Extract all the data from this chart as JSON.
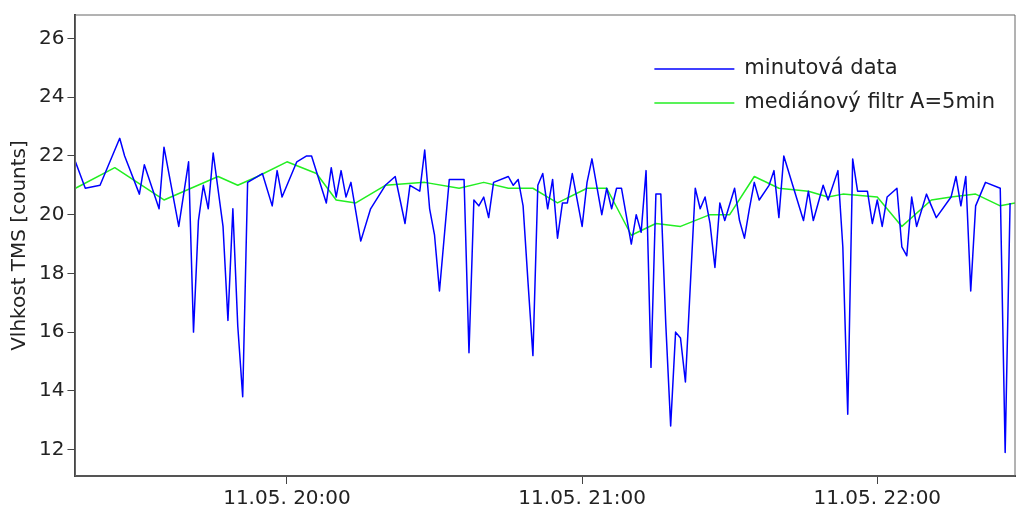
{
  "chart_data": {
    "type": "line",
    "ylabel": "Vlhkost TMS [counts]",
    "xlim": [
      "--05-11T19:17",
      "--05-11T22:28"
    ],
    "ylim": [
      11.1,
      26.8
    ],
    "xticks": [
      {
        "value": "--05-11T20:00",
        "label": "11.05. 20:00"
      },
      {
        "value": "--05-11T21:00",
        "label": "11.05. 21:00"
      },
      {
        "value": "--05-11T22:00",
        "label": "11.05. 22:00"
      }
    ],
    "yticks": [
      12,
      14,
      16,
      18,
      20,
      22,
      24,
      26
    ],
    "grid": false,
    "legend": "top right",
    "marker": "none",
    "line_style": "solid",
    "series": [
      {
        "name": "minutová data",
        "color": "#0000ff",
        "x": [
          "--05-11T19:17",
          "--05-11T19:19",
          "--05-11T19:22",
          "--05-11T19:26",
          "--05-11T19:27",
          "--05-11T19:30",
          "--05-11T19:31",
          "--05-11T19:34",
          "--05-11T19:35",
          "--05-11T19:38",
          "--05-11T19:40",
          "--05-11T19:41",
          "--05-11T19:42",
          "--05-11T19:43",
          "--05-11T19:44",
          "--05-11T19:45",
          "--05-11T19:47",
          "--05-11T19:48",
          "--05-11T19:49",
          "--05-11T19:50",
          "--05-11T19:51",
          "--05-11T19:52",
          "--05-11T19:55",
          "--05-11T19:57",
          "--05-11T19:58",
          "--05-11T19:59",
          "--05-11T20:02",
          "--05-11T20:04",
          "--05-11T20:05",
          "--05-11T20:08",
          "--05-11T20:09",
          "--05-11T20:10",
          "--05-11T20:11",
          "--05-11T20:12",
          "--05-11T20:13",
          "--05-11T20:15",
          "--05-11T20:17",
          "--05-11T20:20",
          "--05-11T20:22",
          "--05-11T20:23",
          "--05-11T20:24",
          "--05-11T20:25",
          "--05-11T20:27",
          "--05-11T20:28",
          "--05-11T20:29",
          "--05-11T20:30",
          "--05-11T20:31",
          "--05-11T20:33",
          "--05-11T20:36",
          "--05-11T20:37",
          "--05-11T20:38",
          "--05-11T20:39",
          "--05-11T20:40",
          "--05-11T20:41",
          "--05-11T20:42",
          "--05-11T20:45",
          "--05-11T20:46",
          "--05-11T20:47",
          "--05-11T20:48",
          "--05-11T20:49",
          "--05-11T20:50",
          "--05-11T20:51",
          "--05-11T20:52",
          "--05-11T20:53",
          "--05-11T20:54",
          "--05-11T20:55",
          "--05-11T20:56",
          "--05-11T20:57",
          "--05-11T20:58",
          "--05-11T21:00",
          "--05-11T21:01",
          "--05-11T21:02",
          "--05-11T21:04",
          "--05-11T21:05",
          "--05-11T21:06",
          "--05-11T21:07",
          "--05-11T21:08",
          "--05-11T21:10",
          "--05-11T21:11",
          "--05-11T21:12",
          "--05-11T21:13",
          "--05-11T21:14",
          "--05-11T21:15",
          "--05-11T21:16",
          "--05-11T21:17",
          "--05-11T21:18",
          "--05-11T21:19",
          "--05-11T21:20",
          "--05-11T21:21",
          "--05-11T21:23",
          "--05-11T21:24",
          "--05-11T21:25",
          "--05-11T21:26",
          "--05-11T21:27",
          "--05-11T21:28",
          "--05-11T21:29",
          "--05-11T21:31",
          "--05-11T21:32",
          "--05-11T21:33",
          "--05-11T21:34",
          "--05-11T21:35",
          "--05-11T21:36",
          "--05-11T21:38",
          "--05-11T21:39",
          "--05-11T21:40",
          "--05-11T21:41",
          "--05-11T21:43",
          "--05-11T21:45",
          "--05-11T21:46",
          "--05-11T21:47",
          "--05-11T21:49",
          "--05-11T21:50",
          "--05-11T21:52",
          "--05-11T21:53",
          "--05-11T21:54",
          "--05-11T21:55",
          "--05-11T21:56",
          "--05-11T21:58",
          "--05-11T21:59",
          "--05-11T22:00",
          "--05-11T22:01",
          "--05-11T22:02",
          "--05-11T22:04",
          "--05-11T22:05",
          "--05-11T22:06",
          "--05-11T22:07",
          "--05-11T22:08",
          "--05-11T22:10",
          "--05-11T22:12",
          "--05-11T22:15",
          "--05-11T22:16",
          "--05-11T22:17",
          "--05-11T22:18",
          "--05-11T22:19",
          "--05-11T22:20",
          "--05-11T22:22",
          "--05-11T22:25",
          "--05-11T22:26",
          "--05-11T22:27"
        ],
        "values": [
          21.8,
          20.9,
          21.0,
          22.6,
          22.0,
          20.7,
          21.7,
          20.2,
          22.3,
          19.6,
          21.8,
          16.0,
          19.8,
          21.0,
          20.2,
          22.1,
          19.6,
          16.4,
          20.2,
          16.2,
          13.8,
          21.1,
          21.4,
          20.3,
          21.5,
          20.6,
          21.8,
          22.0,
          22.0,
          20.4,
          21.6,
          20.6,
          21.5,
          20.6,
          21.1,
          19.1,
          20.2,
          21.0,
          21.3,
          20.5,
          19.7,
          21.0,
          20.8,
          22.2,
          20.2,
          19.3,
          17.4,
          21.2,
          21.2,
          15.3,
          20.5,
          20.3,
          20.6,
          19.9,
          21.1,
          21.3,
          21.0,
          21.2,
          20.3,
          17.7,
          15.2,
          21.0,
          21.4,
          20.2,
          21.2,
          19.2,
          20.4,
          20.4,
          21.4,
          19.6,
          21.1,
          21.9,
          20.0,
          20.9,
          20.2,
          20.9,
          20.9,
          19.0,
          20.0,
          19.4,
          21.5,
          14.8,
          20.7,
          20.7,
          16.3,
          12.8,
          16.0,
          15.8,
          14.3,
          20.9,
          20.2,
          20.6,
          19.7,
          18.2,
          20.4,
          19.8,
          20.9,
          19.8,
          19.2,
          20.2,
          21.1,
          20.5,
          21.0,
          21.5,
          19.9,
          22.0,
          20.9,
          19.8,
          20.8,
          19.8,
          21.0,
          20.5,
          21.5,
          18.9,
          13.2,
          21.9,
          20.8,
          20.8,
          19.7,
          20.5,
          19.6,
          20.6,
          20.9,
          18.9,
          18.6,
          20.6,
          19.6,
          20.7,
          19.9,
          20.6,
          21.3,
          20.3,
          21.3,
          17.4,
          20.3,
          21.1,
          20.9,
          11.9,
          20.4
        ]
      },
      {
        "name": "mediánový filtr A=5min",
        "color": "#22ee22",
        "x": [
          "--05-11T19:17",
          "--05-11T19:25",
          "--05-11T19:35",
          "--05-11T19:46",
          "--05-11T19:50",
          "--05-11T19:54",
          "--05-11T20:00",
          "--05-11T20:06",
          "--05-11T20:10",
          "--05-11T20:14",
          "--05-11T20:20",
          "--05-11T20:28",
          "--05-11T20:35",
          "--05-11T20:40",
          "--05-11T20:45",
          "--05-11T20:50",
          "--05-11T20:53",
          "--05-11T20:55",
          "--05-11T21:01",
          "--05-11T21:05",
          "--05-11T21:10",
          "--05-11T21:15",
          "--05-11T21:20",
          "--05-11T21:26",
          "--05-11T21:30",
          "--05-11T21:35",
          "--05-11T21:40",
          "--05-11T21:46",
          "--05-11T21:50",
          "--05-11T21:53",
          "--05-11T22:00",
          "--05-11T22:05",
          "--05-11T22:11",
          "--05-11T22:15",
          "--05-11T22:20",
          "--05-11T22:25",
          "--05-11T22:28"
        ],
        "values": [
          20.9,
          21.6,
          20.5,
          21.3,
          21.0,
          21.3,
          21.8,
          21.4,
          20.5,
          20.4,
          21.0,
          21.1,
          20.9,
          21.1,
          20.9,
          20.9,
          20.6,
          20.4,
          20.9,
          20.9,
          19.3,
          19.7,
          19.6,
          20.0,
          20.0,
          21.3,
          20.9,
          20.8,
          20.6,
          20.7,
          20.6,
          19.6,
          20.5,
          20.6,
          20.7,
          20.3,
          20.4
        ]
      }
    ]
  }
}
